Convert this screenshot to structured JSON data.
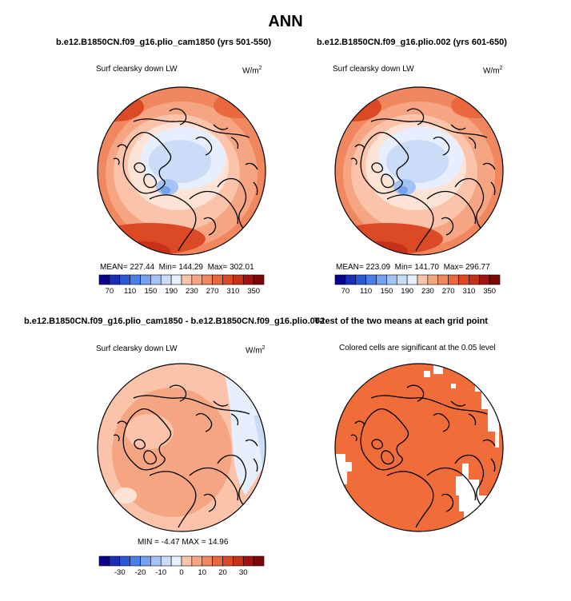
{
  "figure": {
    "title": "ANN",
    "units": "W/m",
    "units_exp": "2"
  },
  "chart_data": [
    {
      "type": "heatmap",
      "projection": "north-polar-stereographic",
      "title": "b.e12.B1850CN.f09_g16.plio_cam1850 (yrs 501-550)",
      "variable": "Surf clearsky down LW",
      "units": "W/m2",
      "mean": "227.44",
      "min": "144.29",
      "max": "302.01",
      "colorbar": {
        "ticks": [
          "70",
          "110",
          "150",
          "190",
          "230",
          "270",
          "310",
          "350"
        ],
        "min": 50,
        "max": 370,
        "step": 20
      }
    },
    {
      "type": "heatmap",
      "projection": "north-polar-stereographic",
      "title": "b.e12.B1850CN.f09_g16.plio.002 (yrs 601-650)",
      "variable": "Surf clearsky down LW",
      "units": "W/m2",
      "mean": "223.09",
      "min": "141.70",
      "max": "296.77",
      "colorbar": {
        "ticks": [
          "70",
          "110",
          "150",
          "190",
          "230",
          "270",
          "310",
          "350"
        ],
        "min": 50,
        "max": 370,
        "step": 20
      }
    },
    {
      "type": "heatmap",
      "projection": "north-polar-stereographic",
      "title": "b.e12.B1850CN.f09_g16.plio_cam1850 - b.e12.B1850CN.f09_g16.plio.002",
      "variable": "Surf clearsky down LW",
      "units": "W/m2",
      "min": "-4.47",
      "max": "14.96",
      "colorbar": {
        "ticks": [
          "-30",
          "-20",
          "-10",
          "0",
          "10",
          "20",
          "30"
        ],
        "min": -40,
        "max": 40,
        "step": 5
      }
    },
    {
      "type": "heatmap",
      "projection": "north-polar-stereographic",
      "title": "T-test of the two means at each grid point",
      "subtitle": "Colored cells are significant at the 0.05 level"
    }
  ],
  "labels": {
    "mean_prefix": "MEAN=",
    "min_prefix": "Min=",
    "max_prefix": "Max=",
    "min_upper": "MIN =",
    "max_upper": "MAX ="
  },
  "colors": {
    "contour_colors": [
      "#08048f",
      "#1a2fb8",
      "#2c59d6",
      "#4a7ee8",
      "#77a1ef",
      "#a4c3f5",
      "#cbdcf8",
      "#e7efff",
      "#fde3d6",
      "#fbc4aa",
      "#f6a583",
      "#f1875e",
      "#e9683e",
      "#dc4a25",
      "#c7311a",
      "#a11210",
      "#7a0606"
    ],
    "significant": "#f06c38",
    "coast": "#000000"
  }
}
